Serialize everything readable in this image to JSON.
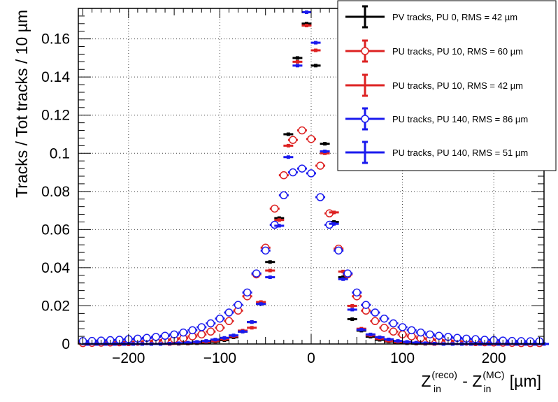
{
  "chart_data": {
    "type": "scatter",
    "title": "",
    "xlabel": {
      "base1": "Z",
      "sub1": "in",
      "sup1": "(reco)",
      "mid": " - ",
      "base2": "Z",
      "sub2": "in",
      "sup2": "(MC)",
      "unit": " [µm]"
    },
    "ylabel": "Tracks / Tot tracks / 10 µm",
    "xlim": [
      -255,
      255
    ],
    "ylim": [
      0,
      0.176
    ],
    "x_ticks": [
      -200,
      -100,
      0,
      100,
      200
    ],
    "x_tick_labels": [
      "−200",
      "−100",
      "0",
      "100",
      "200"
    ],
    "y_ticks": [
      0,
      0.02,
      0.04,
      0.06,
      0.08,
      0.1,
      0.12,
      0.14,
      0.16
    ],
    "y_tick_labels": [
      "0",
      "0.02",
      "0.04",
      "0.06",
      "0.08",
      "0.1",
      "0.12",
      "0.14",
      "0.16"
    ],
    "grid": true,
    "legend_position": "top-right",
    "x": [
      -250,
      -240,
      -230,
      -220,
      -210,
      -200,
      -190,
      -180,
      -170,
      -160,
      -150,
      -140,
      -130,
      -120,
      -110,
      -100,
      -90,
      -80,
      -70,
      -60,
      -50,
      -40,
      -30,
      -20,
      -10,
      0,
      10,
      20,
      30,
      40,
      50,
      60,
      70,
      80,
      90,
      100,
      110,
      120,
      130,
      140,
      150,
      160,
      170,
      180,
      190,
      200,
      210,
      220,
      230,
      240,
      250
    ],
    "series": [
      {
        "name": "PV tracks, PU 0, RMS = 42 µm",
        "color": "#000000",
        "marker": "filled-square",
        "values": [
          0,
          0,
          0,
          0,
          0,
          0,
          0,
          0,
          0,
          0,
          0.0001,
          0.0002,
          0.0004,
          0.0007,
          0.0012,
          0.002,
          0.0035,
          0.0065,
          0.0115,
          0.021,
          0.043,
          0.066,
          0.11,
          0.15,
          0.168,
          0.146,
          0.105,
          0.064,
          0.035,
          0.013,
          0.007,
          0.0038,
          0.0022,
          0.0013,
          0.0007,
          0.0004,
          0.0002,
          0.0001,
          0,
          0,
          0,
          0,
          0,
          0,
          0,
          0,
          0,
          0,
          0,
          0,
          0
        ],
        "x_vals": [
          -245,
          -235,
          -225,
          -215,
          -205,
          -195,
          -185,
          -175,
          -165,
          -155,
          -145,
          -135,
          -125,
          -115,
          -105,
          -95,
          -85,
          -75,
          -65,
          -55,
          -45,
          -35,
          -25,
          -15,
          -5,
          5,
          15,
          25,
          35,
          45,
          55,
          65,
          75,
          85,
          95,
          105,
          115,
          125,
          135,
          145,
          155,
          165,
          175,
          185,
          195,
          205,
          215,
          225,
          235,
          245,
          255
        ]
      },
      {
        "name": "PU tracks, PU 10, RMS = 60 µm",
        "color": "#dd2222",
        "marker": "open-circle",
        "values": [
          0.0005,
          0.0006,
          0.0007,
          0.0008,
          0.0009,
          0.001,
          0.0012,
          0.0014,
          0.0017,
          0.002,
          0.0025,
          0.003,
          0.004,
          0.005,
          0.0065,
          0.0085,
          0.012,
          0.0175,
          0.025,
          0.0365,
          0.0505,
          0.071,
          0.0885,
          0.107,
          0.112,
          0.1075,
          0.0935,
          0.0685,
          0.05,
          0.0365,
          0.025,
          0.0175,
          0.012,
          0.0085,
          0.0065,
          0.005,
          0.004,
          0.003,
          0.0025,
          0.002,
          0.0017,
          0.0014,
          0.0012,
          0.001,
          0.0009,
          0.0008,
          0.0007,
          0.0006,
          0.0005,
          0.0005,
          0.0005
        ],
        "x_vals": [
          -250,
          -240,
          -230,
          -220,
          -210,
          -200,
          -190,
          -180,
          -170,
          -160,
          -150,
          -140,
          -130,
          -120,
          -110,
          -100,
          -90,
          -80,
          -70,
          -60,
          -50,
          -40,
          -30,
          -20,
          -10,
          0,
          10,
          20,
          30,
          40,
          50,
          60,
          70,
          80,
          90,
          100,
          110,
          120,
          130,
          140,
          150,
          160,
          170,
          180,
          190,
          200,
          210,
          220,
          230,
          240,
          250
        ]
      },
      {
        "name": "PU tracks, PU 10, RMS = 42 µm",
        "color": "#dd2222",
        "marker": "filled-square",
        "values": [
          0,
          0,
          0,
          0,
          0,
          0,
          0,
          0,
          0,
          0,
          0.0002,
          0.0004,
          0.0006,
          0.001,
          0.0016,
          0.0025,
          0.004,
          0.007,
          0.0085,
          0.022,
          0.0385,
          0.065,
          0.104,
          0.148,
          0.167,
          0.154,
          0.1,
          0.069,
          0.038,
          0.02,
          0.008,
          0.0045,
          0.0028,
          0.0016,
          0.001,
          0.0006,
          0.0004,
          0.0002,
          0,
          0,
          0,
          0,
          0,
          0,
          0,
          0,
          0,
          0,
          0,
          0,
          0
        ],
        "x_vals": [
          -245,
          -235,
          -225,
          -215,
          -205,
          -195,
          -185,
          -175,
          -165,
          -155,
          -145,
          -135,
          -125,
          -115,
          -105,
          -95,
          -85,
          -75,
          -65,
          -55,
          -45,
          -35,
          -25,
          -15,
          -5,
          5,
          15,
          25,
          35,
          45,
          55,
          65,
          75,
          85,
          95,
          105,
          115,
          125,
          135,
          145,
          155,
          165,
          175,
          185,
          195,
          205,
          215,
          225,
          235,
          245,
          255
        ]
      },
      {
        "name": "PU tracks, PU 140, RMS = 86 µm",
        "color": "#1a1aee",
        "marker": "open-circle",
        "values": [
          0.0015,
          0.0016,
          0.0018,
          0.002,
          0.0022,
          0.0025,
          0.0028,
          0.0032,
          0.0037,
          0.0043,
          0.005,
          0.006,
          0.0072,
          0.0088,
          0.0108,
          0.0133,
          0.0165,
          0.0205,
          0.027,
          0.037,
          0.049,
          0.0625,
          0.078,
          0.09,
          0.092,
          0.0895,
          0.077,
          0.0625,
          0.049,
          0.037,
          0.027,
          0.0205,
          0.0165,
          0.0133,
          0.0108,
          0.0088,
          0.0072,
          0.006,
          0.005,
          0.0043,
          0.0037,
          0.0032,
          0.0028,
          0.0025,
          0.0022,
          0.002,
          0.0018,
          0.0016,
          0.0015,
          0.0014,
          0.0014
        ],
        "x_vals": [
          -250,
          -240,
          -230,
          -220,
          -210,
          -200,
          -190,
          -180,
          -170,
          -160,
          -150,
          -140,
          -130,
          -120,
          -110,
          -100,
          -90,
          -80,
          -70,
          -60,
          -50,
          -40,
          -30,
          -20,
          -10,
          0,
          10,
          20,
          30,
          40,
          50,
          60,
          70,
          80,
          90,
          100,
          110,
          120,
          130,
          140,
          150,
          160,
          170,
          180,
          190,
          200,
          210,
          220,
          230,
          240,
          250
        ]
      },
      {
        "name": "PU tracks, PU 140, RMS = 51 µm",
        "color": "#1a1aee",
        "marker": "filled-square",
        "values": [
          0,
          0,
          0,
          0,
          0,
          0,
          0,
          0,
          0,
          0.0002,
          0.0004,
          0.0007,
          0.0011,
          0.0016,
          0.0023,
          0.0032,
          0.0045,
          0.0065,
          0.0115,
          0.021,
          0.035,
          0.062,
          0.098,
          0.146,
          0.174,
          0.158,
          0.101,
          0.063,
          0.034,
          0.018,
          0.0075,
          0.005,
          0.0035,
          0.0024,
          0.0016,
          0.0011,
          0.0007,
          0.0004,
          0.0002,
          0,
          0,
          0,
          0,
          0,
          0,
          0,
          0,
          0,
          0,
          0,
          0
        ],
        "x_vals": [
          -245,
          -235,
          -225,
          -215,
          -205,
          -195,
          -185,
          -175,
          -165,
          -155,
          -145,
          -135,
          -125,
          -115,
          -105,
          -95,
          -85,
          -75,
          -65,
          -55,
          -45,
          -35,
          -25,
          -15,
          -5,
          5,
          15,
          25,
          35,
          45,
          55,
          65,
          75,
          85,
          95,
          105,
          115,
          125,
          135,
          145,
          155,
          165,
          175,
          185,
          195,
          205,
          215,
          225,
          235,
          245,
          255
        ]
      }
    ]
  }
}
